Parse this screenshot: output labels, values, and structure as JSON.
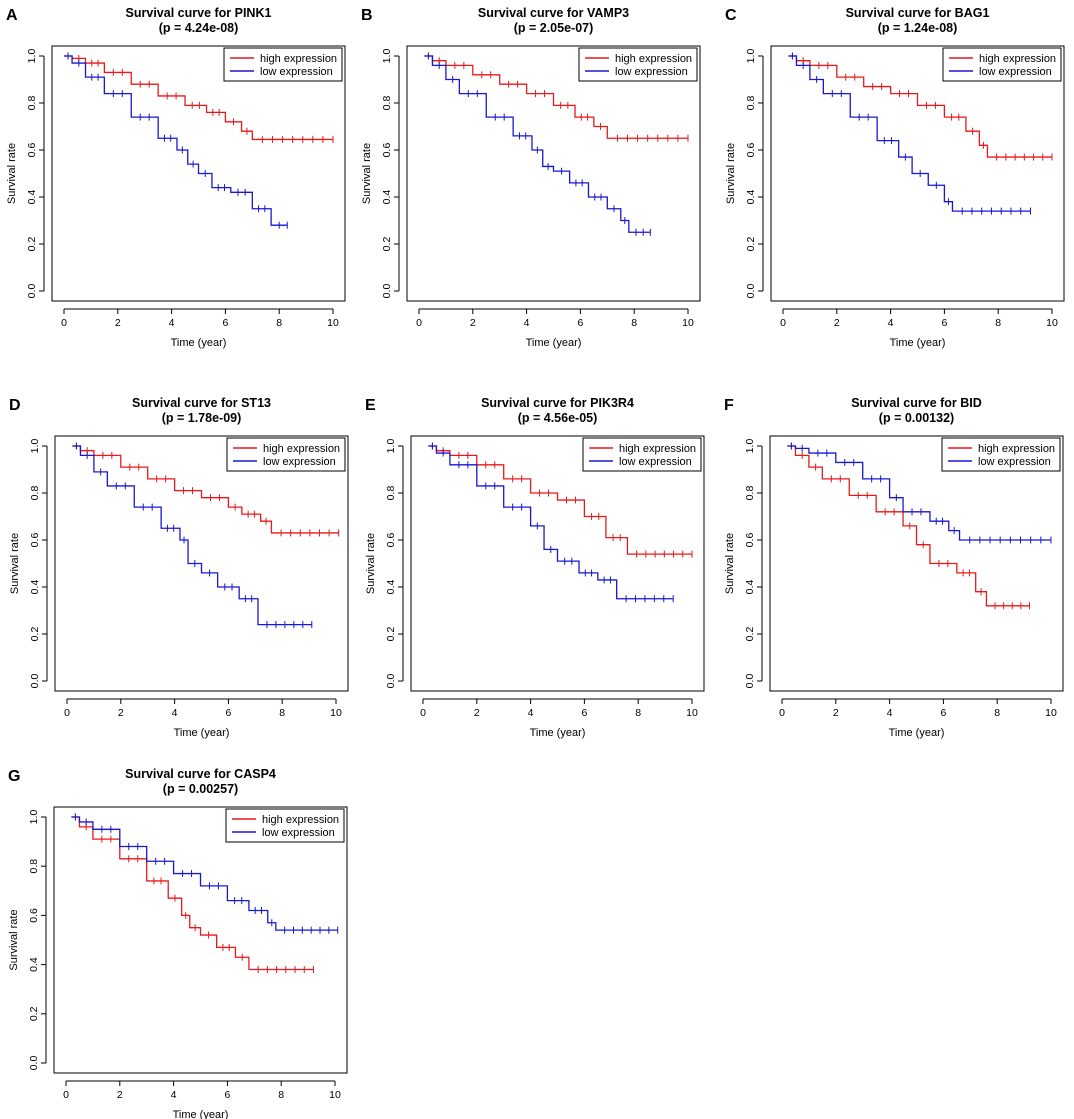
{
  "figure": {
    "x_label": "Time (year)",
    "y_label": "Survival rate",
    "legend_labels": [
      "high expression",
      "low expression"
    ],
    "colors": {
      "high": "#e8191b",
      "low": "#1818d0"
    }
  },
  "chart_data": [
    {
      "type": "line",
      "panel": "A",
      "title": "Survival curve for PINK1",
      "subtitle": "(p = 4.24e-08)",
      "xlabel": "Time (year)",
      "ylabel": "Survival rate",
      "xlim": [
        0,
        10
      ],
      "ylim": [
        0,
        1
      ],
      "xticks": [
        0,
        2,
        4,
        6,
        8,
        10
      ],
      "yticks": [
        0.0,
        0.2,
        0.4,
        0.6,
        0.8,
        1.0
      ],
      "legend": "top-right",
      "series": [
        {
          "name": "high expression",
          "color": "#e8191b",
          "x": [
            0,
            0.3,
            0.8,
            1.5,
            2.5,
            3.5,
            4.5,
            5.3,
            6.0,
            6.6,
            7.0,
            10.0
          ],
          "y": [
            1.0,
            0.99,
            0.97,
            0.93,
            0.88,
            0.83,
            0.79,
            0.76,
            0.72,
            0.68,
            0.645,
            0.645
          ]
        },
        {
          "name": "low expression",
          "color": "#1818d0",
          "x": [
            0,
            0.3,
            0.8,
            1.5,
            2.5,
            3.5,
            4.2,
            4.6,
            5.0,
            5.5,
            6.2,
            7.0,
            7.7,
            8.3
          ],
          "y": [
            1.0,
            0.97,
            0.91,
            0.84,
            0.74,
            0.65,
            0.6,
            0.54,
            0.5,
            0.44,
            0.42,
            0.35,
            0.28,
            0.28
          ]
        }
      ]
    },
    {
      "type": "line",
      "panel": "B",
      "title": "Survival curve for VAMP3",
      "subtitle": "(p = 2.05e-07)",
      "xlabel": "Time (year)",
      "ylabel": "Survival rate",
      "xlim": [
        0,
        10
      ],
      "ylim": [
        0,
        1
      ],
      "xticks": [
        0,
        2,
        4,
        6,
        8,
        10
      ],
      "yticks": [
        0.0,
        0.2,
        0.4,
        0.6,
        0.8,
        1.0
      ],
      "legend": "top-right",
      "series": [
        {
          "name": "high expression",
          "color": "#e8191b",
          "x": [
            0.2,
            0.5,
            1.0,
            2.0,
            3.0,
            4.0,
            5.0,
            5.8,
            6.5,
            7.0,
            10.0
          ],
          "y": [
            1.0,
            0.98,
            0.96,
            0.92,
            0.88,
            0.84,
            0.79,
            0.74,
            0.7,
            0.65,
            0.65
          ]
        },
        {
          "name": "low expression",
          "color": "#1818d0",
          "x": [
            0.2,
            0.5,
            1.0,
            1.5,
            2.5,
            3.5,
            4.2,
            4.6,
            5.0,
            5.6,
            6.3,
            7.0,
            7.5,
            7.8,
            8.6
          ],
          "y": [
            1.0,
            0.96,
            0.9,
            0.84,
            0.74,
            0.66,
            0.6,
            0.53,
            0.51,
            0.46,
            0.4,
            0.35,
            0.3,
            0.25,
            0.25
          ]
        }
      ]
    },
    {
      "type": "line",
      "panel": "C",
      "title": "Survival curve for BAG1",
      "subtitle": "(p = 1.24e-08)",
      "xlabel": "Time (year)",
      "ylabel": "Survival rate",
      "xlim": [
        0,
        10
      ],
      "ylim": [
        0,
        1
      ],
      "xticks": [
        0,
        2,
        4,
        6,
        8,
        10
      ],
      "yticks": [
        0.0,
        0.2,
        0.4,
        0.6,
        0.8,
        1.0
      ],
      "legend": "top-right",
      "series": [
        {
          "name": "high expression",
          "color": "#e8191b",
          "x": [
            0.2,
            0.5,
            1.0,
            2.0,
            3.0,
            4.0,
            5.0,
            6.0,
            6.8,
            7.3,
            7.6,
            10.0
          ],
          "y": [
            1.0,
            0.98,
            0.96,
            0.91,
            0.87,
            0.84,
            0.79,
            0.74,
            0.68,
            0.62,
            0.57,
            0.57
          ]
        },
        {
          "name": "low expression",
          "color": "#1818d0",
          "x": [
            0.2,
            0.5,
            1.0,
            1.5,
            2.5,
            3.5,
            4.3,
            4.8,
            5.4,
            6.0,
            6.3,
            9.2
          ],
          "y": [
            1.0,
            0.96,
            0.9,
            0.84,
            0.74,
            0.64,
            0.57,
            0.5,
            0.45,
            0.38,
            0.34,
            0.34
          ]
        }
      ]
    },
    {
      "type": "line",
      "panel": "D",
      "title": "Survival curve for ST13",
      "subtitle": "(p = 1.78e-09)",
      "xlabel": "Time (year)",
      "ylabel": "Survival rate",
      "xlim": [
        0,
        10
      ],
      "ylim": [
        0,
        1
      ],
      "xticks": [
        0,
        2,
        4,
        6,
        8,
        10
      ],
      "yticks": [
        0.0,
        0.2,
        0.4,
        0.6,
        0.8,
        1.0
      ],
      "legend": "top-right",
      "series": [
        {
          "name": "high expression",
          "color": "#e8191b",
          "x": [
            0.2,
            0.5,
            1.0,
            2.0,
            3.0,
            4.0,
            5.0,
            6.0,
            6.5,
            7.2,
            7.6,
            10.1
          ],
          "y": [
            1.0,
            0.98,
            0.96,
            0.91,
            0.86,
            0.81,
            0.78,
            0.74,
            0.71,
            0.68,
            0.63,
            0.63
          ]
        },
        {
          "name": "low expression",
          "color": "#1818d0",
          "x": [
            0.2,
            0.5,
            1.0,
            1.5,
            2.5,
            3.5,
            4.2,
            4.5,
            5.0,
            5.6,
            6.4,
            7.1,
            9.1
          ],
          "y": [
            1.0,
            0.96,
            0.89,
            0.83,
            0.74,
            0.65,
            0.6,
            0.5,
            0.46,
            0.4,
            0.35,
            0.24,
            0.24
          ]
        }
      ]
    },
    {
      "type": "line",
      "panel": "E",
      "title": "Survival curve for PIK3R4",
      "subtitle": "(p = 4.56e-05)",
      "xlabel": "Time (year)",
      "ylabel": "Survival rate",
      "xlim": [
        0,
        10
      ],
      "ylim": [
        0,
        1
      ],
      "xticks": [
        0,
        2,
        4,
        6,
        8,
        10
      ],
      "yticks": [
        0.0,
        0.2,
        0.4,
        0.6,
        0.8,
        1.0
      ],
      "legend": "top-right",
      "series": [
        {
          "name": "high expression",
          "color": "#e8191b",
          "x": [
            0.2,
            0.5,
            1.0,
            2.0,
            3.0,
            4.0,
            5.0,
            6.0,
            6.8,
            7.6,
            10.0
          ],
          "y": [
            1.0,
            0.98,
            0.96,
            0.92,
            0.86,
            0.8,
            0.77,
            0.7,
            0.61,
            0.54,
            0.54
          ]
        },
        {
          "name": "low expression",
          "color": "#1818d0",
          "x": [
            0.2,
            0.5,
            1.0,
            2.0,
            3.0,
            4.0,
            4.5,
            5.0,
            5.8,
            6.5,
            7.2,
            9.3
          ],
          "y": [
            1.0,
            0.97,
            0.92,
            0.83,
            0.74,
            0.66,
            0.56,
            0.51,
            0.46,
            0.43,
            0.35,
            0.35
          ]
        }
      ]
    },
    {
      "type": "line",
      "panel": "F",
      "title": "Survival curve for BID",
      "subtitle": "(p = 0.00132)",
      "xlabel": "Time (year)",
      "ylabel": "Survival rate",
      "xlim": [
        0,
        10
      ],
      "ylim": [
        0,
        1
      ],
      "xticks": [
        0,
        2,
        4,
        6,
        8,
        10
      ],
      "yticks": [
        0.0,
        0.2,
        0.4,
        0.6,
        0.8,
        1.0
      ],
      "legend": "top-right",
      "series": [
        {
          "name": "high expression",
          "color": "#e8191b",
          "x": [
            0.2,
            0.5,
            1.0,
            1.5,
            2.5,
            3.5,
            4.5,
            5.0,
            5.5,
            6.5,
            7.2,
            7.6,
            9.2
          ],
          "y": [
            1.0,
            0.96,
            0.91,
            0.86,
            0.79,
            0.72,
            0.66,
            0.58,
            0.5,
            0.46,
            0.38,
            0.32,
            0.32
          ]
        },
        {
          "name": "low expression",
          "color": "#1818d0",
          "x": [
            0.2,
            0.5,
            1.0,
            2.0,
            3.0,
            4.0,
            4.5,
            5.5,
            6.2,
            6.6,
            10.0
          ],
          "y": [
            1.0,
            0.99,
            0.97,
            0.93,
            0.86,
            0.78,
            0.72,
            0.68,
            0.64,
            0.6,
            0.6
          ]
        }
      ]
    },
    {
      "type": "line",
      "panel": "G",
      "title": "Survival curve for CASP4",
      "subtitle": "(p = 0.00257)",
      "xlabel": "Time (year)",
      "ylabel": "Survival rate",
      "xlim": [
        0,
        10
      ],
      "ylim": [
        0,
        1
      ],
      "xticks": [
        0,
        2,
        4,
        6,
        8,
        10
      ],
      "yticks": [
        0.0,
        0.2,
        0.4,
        0.6,
        0.8,
        1.0
      ],
      "legend": "top-right",
      "series": [
        {
          "name": "high expression",
          "color": "#e8191b",
          "x": [
            0.2,
            0.5,
            1.0,
            2.0,
            3.0,
            3.8,
            4.3,
            4.6,
            5.0,
            5.6,
            6.3,
            6.8,
            9.2
          ],
          "y": [
            1.0,
            0.96,
            0.91,
            0.83,
            0.74,
            0.67,
            0.6,
            0.55,
            0.52,
            0.47,
            0.43,
            0.38,
            0.38
          ]
        },
        {
          "name": "low expression",
          "color": "#1818d0",
          "x": [
            0.2,
            0.5,
            1.0,
            2.0,
            3.0,
            4.0,
            5.0,
            6.0,
            6.8,
            7.5,
            7.8,
            10.1
          ],
          "y": [
            1.0,
            0.98,
            0.95,
            0.88,
            0.82,
            0.77,
            0.72,
            0.66,
            0.62,
            0.57,
            0.54,
            0.54
          ]
        }
      ]
    }
  ]
}
